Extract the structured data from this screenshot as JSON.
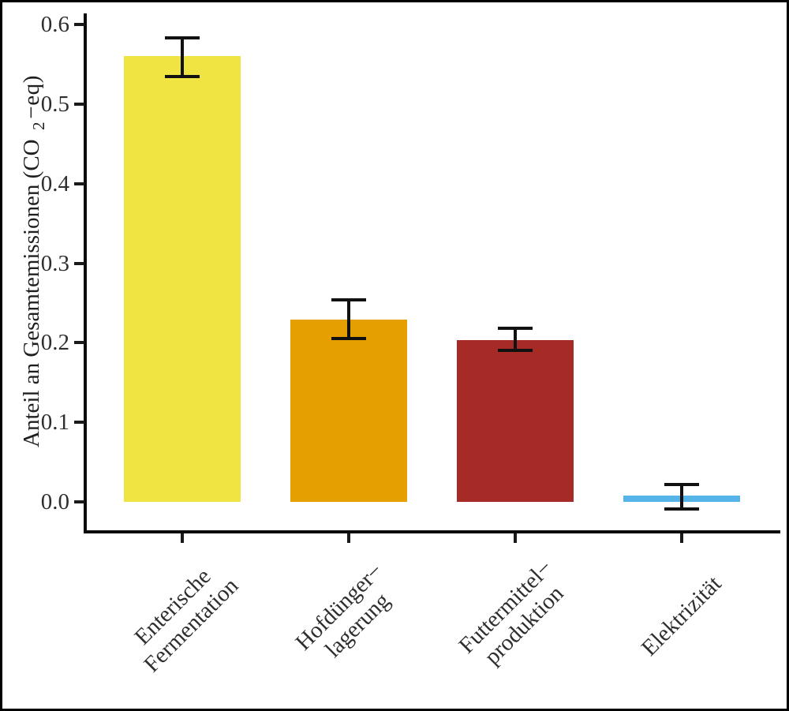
{
  "figure": {
    "background": "#ffffff",
    "frame_color": "#000000"
  },
  "axis": {
    "line_color": "#0a0a0a",
    "tick_color": "#1a1a1a",
    "text_color": "#2e2e2e"
  },
  "chart_data": {
    "type": "bar",
    "title": "",
    "xlabel": "",
    "ylabel": "Anteil an Gesamtemissionen (CO₂−eq)",
    "ylabel_parts": {
      "main": "Anteil an Gesamtemissionen (CO",
      "sub": "2",
      "suffix": "−eq)"
    },
    "categories": [
      "Enterische Fermentation",
      "Hofdünger−lagerung",
      "Futtermittel−produktion",
      "Elektrizität"
    ],
    "category_lines": [
      [
        "Enterische",
        "Fermentation"
      ],
      [
        "Hofdünger−",
        "lagerung"
      ],
      [
        "Futtermittel−",
        "produktion"
      ],
      [
        "Elektrizität"
      ]
    ],
    "values": [
      0.56,
      0.229,
      0.203,
      0.008
    ],
    "error_low": [
      0.535,
      0.205,
      0.19,
      -0.009
    ],
    "error_high": [
      0.583,
      0.254,
      0.218,
      0.022
    ],
    "bar_colors": [
      "#F0E442",
      "#E69F00",
      "#A62A26",
      "#56B4E9"
    ],
    "error_bar_color": "#111111",
    "ylim": [
      0.0,
      0.6
    ],
    "yticks": [
      0.0,
      0.1,
      0.2,
      0.3,
      0.4,
      0.5,
      0.6
    ],
    "ytick_labels": [
      "0.0",
      "0.1",
      "0.2",
      "0.3",
      "0.4",
      "0.5",
      "0.6"
    ],
    "grid": false,
    "legend": false
  }
}
